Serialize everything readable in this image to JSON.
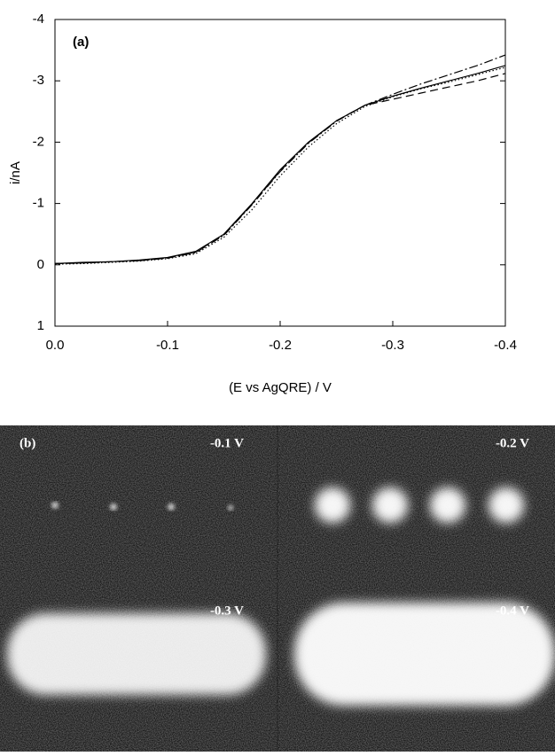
{
  "chart_data": {
    "type": "line",
    "panel_label": "(a)",
    "x_label": "(E vs AgQRE) / V",
    "y_label": "i/nA",
    "x": [
      0,
      -0.025,
      -0.05,
      -0.075,
      -0.1,
      -0.125,
      -0.15,
      -0.175,
      -0.2,
      -0.225,
      -0.25,
      -0.275,
      -0.3,
      -0.325,
      -0.35,
      -0.375,
      -0.4
    ],
    "series": [
      {
        "color": "#000000",
        "dash": "solid",
        "values": [
          -0.02,
          -0.04,
          -0.05,
          -0.08,
          -0.12,
          -0.22,
          -0.5,
          -1.0,
          -1.55,
          -2.0,
          -2.35,
          -2.6,
          -2.75,
          -2.88,
          -3.0,
          -3.12,
          -3.25
        ]
      },
      {
        "color": "#000000",
        "dash": "dotted",
        "values": [
          -0.01,
          -0.02,
          -0.04,
          -0.06,
          -0.1,
          -0.18,
          -0.45,
          -0.9,
          -1.45,
          -1.92,
          -2.3,
          -2.58,
          -2.74,
          -2.87,
          -2.98,
          -3.1,
          -3.22
        ]
      },
      {
        "color": "#000000",
        "dash": "dashdot",
        "values": [
          -0.02,
          -0.03,
          -0.05,
          -0.07,
          -0.11,
          -0.2,
          -0.48,
          -0.98,
          -1.52,
          -1.98,
          -2.34,
          -2.6,
          -2.78,
          -2.95,
          -3.1,
          -3.25,
          -3.42
        ]
      },
      {
        "color": "#000000",
        "dash": "dashed",
        "values": [
          -0.02,
          -0.03,
          -0.05,
          -0.07,
          -0.11,
          -0.21,
          -0.49,
          -0.99,
          -1.53,
          -1.99,
          -2.35,
          -2.6,
          -2.7,
          -2.8,
          -2.9,
          -3.0,
          -3.12
        ]
      }
    ],
    "xlim": [
      0,
      -0.4
    ],
    "xticks": [
      {
        "value": 0,
        "label": "0.0"
      },
      -0.1,
      -0.2,
      -0.3,
      -0.4
    ],
    "ylim": [
      1,
      -4
    ],
    "yticks": [
      -4,
      -3,
      -2,
      -1,
      0,
      1
    ],
    "grid": false
  },
  "image_panel": {
    "label": "(b)",
    "potentials": [
      "-0.1 V",
      "-0.2 V",
      "-0.3 V",
      "-0.4 V"
    ]
  }
}
